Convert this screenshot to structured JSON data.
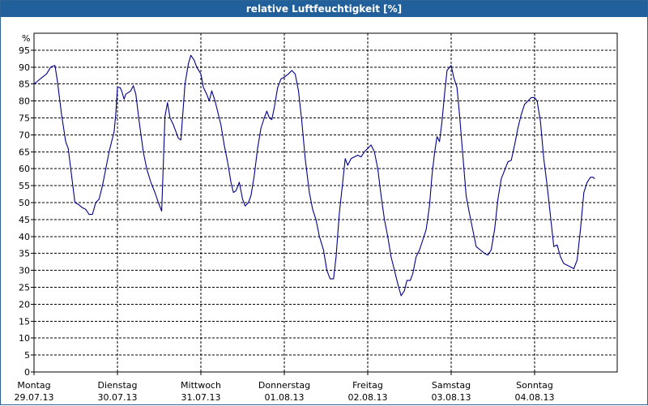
{
  "window": {
    "title": "relative Luftfeuchtigkeit [%]"
  },
  "colors": {
    "titlebar": "#21609a",
    "line": "#00008b",
    "grid": "#000000"
  },
  "chart_data": {
    "type": "line",
    "title": "relative Luftfeuchtigkeit [%]",
    "ylabel": "%",
    "xlabel": "",
    "ylim": [
      0,
      100
    ],
    "yticks": [
      0,
      5,
      10,
      15,
      20,
      25,
      30,
      35,
      40,
      45,
      50,
      55,
      60,
      65,
      70,
      75,
      80,
      85,
      90,
      95
    ],
    "xlim": [
      0,
      7
    ],
    "x_unit": "days since Monday 29.07.13 00:00",
    "grid": true,
    "legend": "none",
    "day_labels": [
      {
        "day": "Montag",
        "date": "29.07.13"
      },
      {
        "day": "Dienstag",
        "date": "30.07.13"
      },
      {
        "day": "Mittwoch",
        "date": "31.07.13"
      },
      {
        "day": "Donnerstag",
        "date": "01.08.13"
      },
      {
        "day": "Freitag",
        "date": "02.08.13"
      },
      {
        "day": "Samstag",
        "date": "03.08.13"
      },
      {
        "day": "Sonntag",
        "date": "04.08.13"
      }
    ],
    "series": [
      {
        "color": "#00008b",
        "points": [
          [
            0.0,
            85
          ],
          [
            0.05,
            86
          ],
          [
            0.1,
            87
          ],
          [
            0.15,
            88
          ],
          [
            0.2,
            90
          ],
          [
            0.25,
            90.5
          ],
          [
            0.28,
            86
          ],
          [
            0.33,
            76
          ],
          [
            0.38,
            68
          ],
          [
            0.41,
            66
          ],
          [
            0.46,
            56
          ],
          [
            0.49,
            50
          ],
          [
            0.53,
            49.5
          ],
          [
            0.58,
            48.5
          ],
          [
            0.62,
            48
          ],
          [
            0.66,
            46.5
          ],
          [
            0.7,
            46.5
          ],
          [
            0.74,
            50
          ],
          [
            0.78,
            51
          ],
          [
            0.82,
            55
          ],
          [
            0.86,
            60
          ],
          [
            0.9,
            65
          ],
          [
            0.93,
            68
          ],
          [
            0.96,
            71
          ],
          [
            0.98,
            76
          ],
          [
            1.0,
            84
          ],
          [
            1.03,
            84
          ],
          [
            1.05,
            83
          ],
          [
            1.08,
            80.5
          ],
          [
            1.1,
            82
          ],
          [
            1.13,
            82.5
          ],
          [
            1.16,
            83
          ],
          [
            1.19,
            84.5
          ],
          [
            1.22,
            82
          ],
          [
            1.26,
            74
          ],
          [
            1.31,
            65
          ],
          [
            1.35,
            60
          ],
          [
            1.4,
            56
          ],
          [
            1.45,
            53
          ],
          [
            1.49,
            50
          ],
          [
            1.53,
            47.5
          ],
          [
            1.57,
            75.5
          ],
          [
            1.6,
            79.5
          ],
          [
            1.63,
            75
          ],
          [
            1.67,
            73
          ],
          [
            1.7,
            71
          ],
          [
            1.73,
            69
          ],
          [
            1.76,
            68.5
          ],
          [
            1.78,
            75
          ],
          [
            1.81,
            85
          ],
          [
            1.85,
            91
          ],
          [
            1.88,
            93.5
          ],
          [
            1.92,
            92
          ],
          [
            1.95,
            90
          ],
          [
            2.0,
            88
          ],
          [
            2.03,
            84
          ],
          [
            2.07,
            82
          ],
          [
            2.1,
            80
          ],
          [
            2.13,
            83
          ],
          [
            2.17,
            80
          ],
          [
            2.2,
            77
          ],
          [
            2.24,
            73
          ],
          [
            2.28,
            67
          ],
          [
            2.32,
            62
          ],
          [
            2.36,
            56
          ],
          [
            2.39,
            53
          ],
          [
            2.42,
            53.5
          ],
          [
            2.46,
            56
          ],
          [
            2.5,
            51
          ],
          [
            2.53,
            49
          ],
          [
            2.57,
            50
          ],
          [
            2.6,
            52
          ],
          [
            2.64,
            58
          ],
          [
            2.68,
            66
          ],
          [
            2.72,
            72
          ],
          [
            2.76,
            75
          ],
          [
            2.79,
            77
          ],
          [
            2.82,
            75
          ],
          [
            2.85,
            74.5
          ],
          [
            2.88,
            78
          ],
          [
            2.92,
            84
          ],
          [
            2.96,
            86.5
          ],
          [
            3.0,
            87
          ],
          [
            3.05,
            88
          ],
          [
            3.09,
            89
          ],
          [
            3.13,
            88
          ],
          [
            3.17,
            83
          ],
          [
            3.21,
            74
          ],
          [
            3.25,
            63
          ],
          [
            3.3,
            53
          ],
          [
            3.34,
            48
          ],
          [
            3.38,
            45
          ],
          [
            3.42,
            40
          ],
          [
            3.47,
            36
          ],
          [
            3.51,
            30
          ],
          [
            3.55,
            27.5
          ],
          [
            3.59,
            27.5
          ],
          [
            3.62,
            34
          ],
          [
            3.66,
            47
          ],
          [
            3.7,
            56
          ],
          [
            3.73,
            63
          ],
          [
            3.76,
            61
          ],
          [
            3.8,
            63
          ],
          [
            3.84,
            63.5
          ],
          [
            3.88,
            64
          ],
          [
            3.92,
            63.5
          ],
          [
            3.96,
            65
          ],
          [
            4.0,
            66
          ],
          [
            4.04,
            67
          ],
          [
            4.08,
            65
          ],
          [
            4.12,
            60
          ],
          [
            4.16,
            52
          ],
          [
            4.2,
            45
          ],
          [
            4.24,
            40
          ],
          [
            4.28,
            34
          ],
          [
            4.32,
            30
          ],
          [
            4.36,
            26
          ],
          [
            4.4,
            22.5
          ],
          [
            4.44,
            24
          ],
          [
            4.47,
            27
          ],
          [
            4.51,
            27
          ],
          [
            4.54,
            29
          ],
          [
            4.58,
            34
          ],
          [
            4.62,
            36
          ],
          [
            4.66,
            39
          ],
          [
            4.7,
            42
          ],
          [
            4.74,
            49
          ],
          [
            4.77,
            58
          ],
          [
            4.8,
            64.5
          ],
          [
            4.83,
            69.5
          ],
          [
            4.86,
            68
          ],
          [
            4.89,
            74
          ],
          [
            4.92,
            82
          ],
          [
            4.95,
            89
          ],
          [
            5.0,
            90.5
          ],
          [
            5.03,
            87
          ],
          [
            5.07,
            84
          ],
          [
            5.1,
            76
          ],
          [
            5.14,
            64
          ],
          [
            5.18,
            52
          ],
          [
            5.21,
            48
          ],
          [
            5.25,
            43
          ],
          [
            5.3,
            37
          ],
          [
            5.35,
            36
          ],
          [
            5.4,
            35
          ],
          [
            5.44,
            34.5
          ],
          [
            5.48,
            36
          ],
          [
            5.52,
            42
          ],
          [
            5.56,
            51
          ],
          [
            5.6,
            57
          ],
          [
            5.64,
            59.5
          ],
          [
            5.68,
            62
          ],
          [
            5.72,
            62.5
          ],
          [
            5.76,
            67
          ],
          [
            5.8,
            72
          ],
          [
            5.84,
            76
          ],
          [
            5.88,
            79
          ],
          [
            5.92,
            80
          ],
          [
            5.96,
            81
          ],
          [
            6.0,
            81
          ],
          [
            6.03,
            80
          ],
          [
            6.07,
            74
          ],
          [
            6.11,
            63
          ],
          [
            6.15,
            55
          ],
          [
            6.19,
            46
          ],
          [
            6.23,
            37
          ],
          [
            6.27,
            37.5
          ],
          [
            6.31,
            34
          ],
          [
            6.35,
            32
          ],
          [
            6.39,
            31.5
          ],
          [
            6.43,
            31
          ],
          [
            6.47,
            30.5
          ],
          [
            6.51,
            33
          ],
          [
            6.55,
            42
          ],
          [
            6.59,
            53
          ],
          [
            6.63,
            56
          ],
          [
            6.67,
            57.5
          ],
          [
            6.7,
            57.5
          ],
          [
            6.72,
            57
          ]
        ]
      }
    ]
  }
}
